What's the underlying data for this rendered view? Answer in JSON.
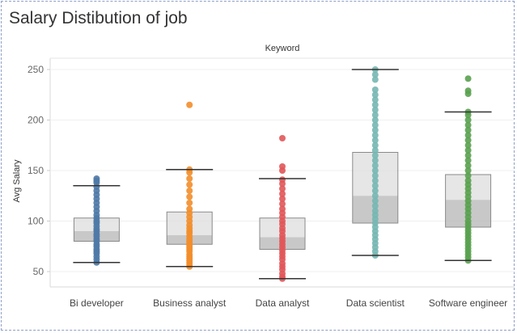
{
  "title": "Salary Distibution of job",
  "chart_data": {
    "type": "box",
    "header": "Keyword",
    "ylabel": "Avg Salary",
    "ylim": [
      35,
      255
    ],
    "yticks": [
      50,
      100,
      150,
      200,
      250
    ],
    "grid": true,
    "categories": [
      "Bi developer",
      "Business analyst",
      "Data analyst",
      "Data scientist",
      "Software engineer"
    ],
    "colors": [
      "#4e79a7",
      "#f28e2b",
      "#e15759",
      "#76b7b2",
      "#59a14f"
    ],
    "boxes": [
      {
        "whisker_low": 59,
        "q1": 80,
        "median": 90,
        "q3": 103,
        "whisker_high": 135
      },
      {
        "whisker_low": 55,
        "q1": 77,
        "median": 86,
        "q3": 109,
        "whisker_high": 151
      },
      {
        "whisker_low": 43,
        "q1": 72,
        "median": 84,
        "q3": 103,
        "whisker_high": 142
      },
      {
        "whisker_low": 66,
        "q1": 98,
        "median": 125,
        "q3": 168,
        "whisker_high": 250
      },
      {
        "whisker_low": 61,
        "q1": 94,
        "median": 121,
        "q3": 146,
        "whisker_high": 208
      }
    ],
    "points": [
      [
        59,
        62,
        65,
        68,
        70,
        72,
        75,
        77,
        80,
        82,
        85,
        87,
        90,
        92,
        95,
        98,
        100,
        103,
        106,
        110,
        114,
        118,
        122,
        126,
        130,
        134,
        138,
        140,
        142
      ],
      [
        55,
        57,
        59,
        61,
        63,
        65,
        67,
        70,
        72,
        74,
        76,
        78,
        80,
        82,
        85,
        88,
        90,
        93,
        96,
        100,
        104,
        108,
        112,
        118,
        124,
        130,
        136,
        142,
        148,
        151,
        215
      ],
      [
        43,
        45,
        48,
        52,
        55,
        58,
        62,
        65,
        68,
        71,
        74,
        77,
        80,
        83,
        86,
        90,
        93,
        97,
        100,
        104,
        108,
        112,
        117,
        122,
        127,
        132,
        137,
        141,
        150,
        154,
        182
      ],
      [
        66,
        70,
        74,
        78,
        82,
        86,
        90,
        94,
        98,
        102,
        106,
        110,
        115,
        120,
        125,
        130,
        135,
        140,
        145,
        150,
        155,
        160,
        165,
        170,
        175,
        180,
        185,
        190,
        195,
        200,
        205,
        210,
        215,
        220,
        225,
        230,
        240,
        245,
        250
      ],
      [
        61,
        64,
        67,
        70,
        73,
        76,
        79,
        82,
        85,
        88,
        91,
        94,
        97,
        100,
        104,
        108,
        112,
        116,
        120,
        124,
        128,
        132,
        136,
        140,
        145,
        150,
        155,
        160,
        165,
        170,
        175,
        180,
        185,
        190,
        195,
        200,
        205,
        208,
        226,
        229,
        241
      ]
    ]
  }
}
